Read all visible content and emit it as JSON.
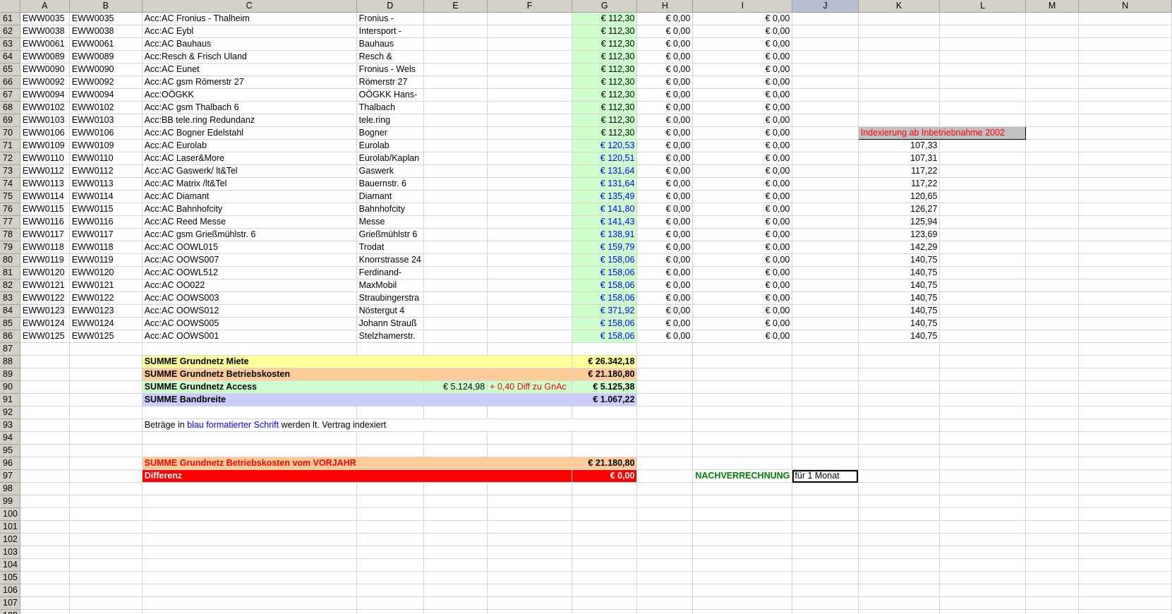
{
  "columns": [
    "A",
    "B",
    "C",
    "D",
    "E",
    "F",
    "G",
    "H",
    "I",
    "J",
    "K",
    "L",
    "M",
    "N"
  ],
  "selected_column": "J",
  "rows": [
    {
      "n": "61",
      "a": "EWW0035",
      "b": "EWW0035",
      "c": "Acc:AC Fronius - Thalheim",
      "d": "Fronius -",
      "g": "€ 112,30",
      "h": "€ 0,00",
      "i": "€ 0,00",
      "k": ""
    },
    {
      "n": "62",
      "a": "EWW0038",
      "b": "EWW0038",
      "c": "Acc:AC Eybl",
      "d": "Intersport -",
      "g": "€ 112,30",
      "h": "€ 0,00",
      "i": "€ 0,00",
      "k": ""
    },
    {
      "n": "63",
      "a": "EWW0061",
      "b": "EWW0061",
      "c": "Acc:AC Bauhaus",
      "d": "Bauhaus",
      "g": "€ 112,30",
      "h": "€ 0,00",
      "i": "€ 0,00",
      "k": ""
    },
    {
      "n": "64",
      "a": "EWW0089",
      "b": "EWW0089",
      "c": "Acc:Resch & Frisch Uland",
      "d": "Resch &",
      "g": "€ 112,30",
      "h": "€ 0,00",
      "i": "€ 0,00",
      "k": ""
    },
    {
      "n": "65",
      "a": "EWW0090",
      "b": "EWW0090",
      "c": "Acc:AC Eunet",
      "d": "Fronius - Wels",
      "g": "€ 112,30",
      "h": "€ 0,00",
      "i": "€ 0,00",
      "k": ""
    },
    {
      "n": "66",
      "a": "EWW0092",
      "b": "EWW0092",
      "c": "Acc:AC gsm Römerstr 27",
      "d": "Römerstr 27",
      "g": "€ 112,30",
      "h": "€ 0,00",
      "i": "€ 0,00",
      "k": ""
    },
    {
      "n": "67",
      "a": "EWW0094",
      "b": "EWW0094",
      "c": "Acc:OÖGKK",
      "d": "OÖGKK Hans-",
      "g": "€ 112,30",
      "h": "€ 0,00",
      "i": "€ 0,00",
      "k": ""
    },
    {
      "n": "68",
      "a": "EWW0102",
      "b": "EWW0102",
      "c": "Acc:AC gsm Thalbach 6",
      "d": "Thalbach",
      "g": "€ 112,30",
      "h": "€ 0,00",
      "i": "€ 0,00",
      "k": ""
    },
    {
      "n": "69",
      "a": "EWW0103",
      "b": "EWW0103",
      "c": "Acc:BB tele.ring Redundanz",
      "d": "tele.ring",
      "g": "€ 112,30",
      "h": "€ 0,00",
      "i": "€ 0,00",
      "k": ""
    },
    {
      "n": "70",
      "a": "EWW0106",
      "b": "EWW0106",
      "c": "Acc:AC Bogner Edelstahl",
      "d": "Bogner",
      "g": "€ 112,30",
      "h": "€ 0,00",
      "i": "€ 0,00",
      "k": "Indexierung ab Inbetriebnahme 2002"
    },
    {
      "n": "71",
      "a": "EWW0109",
      "b": "EWW0109",
      "c": "Acc:AC Eurolab",
      "d": "Eurolab",
      "g": "€ 120,53",
      "h": "€ 0,00",
      "i": "€ 0,00",
      "k": "107,33",
      "blue": true
    },
    {
      "n": "72",
      "a": "EWW0110",
      "b": "EWW0110",
      "c": "Acc:AC Laser&More",
      "d": "Eurolab/Kaplan",
      "g": "€ 120,51",
      "h": "€ 0,00",
      "i": "€ 0,00",
      "k": "107,31",
      "blue": true
    },
    {
      "n": "73",
      "a": "EWW0112",
      "b": "EWW0112",
      "c": "Acc:AC Gaswerk/ lt&Tel",
      "d": "Gaswerk",
      "g": "€ 131,64",
      "h": "€ 0,00",
      "i": "€ 0,00",
      "k": "117,22",
      "blue": true
    },
    {
      "n": "74",
      "a": "EWW0113",
      "b": "EWW0113",
      "c": "Acc:AC Matrix /lt&Tel",
      "d": "Bauernstr. 6",
      "g": "€ 131,64",
      "h": "€ 0,00",
      "i": "€ 0,00",
      "k": "117,22",
      "blue": true
    },
    {
      "n": "75",
      "a": "EWW0114",
      "b": "EWW0114",
      "c": "Acc:AC Diamant",
      "d": "Diamant",
      "g": "€ 135,49",
      "h": "€ 0,00",
      "i": "€ 0,00",
      "k": "120,65",
      "blue": true
    },
    {
      "n": "76",
      "a": "EWW0115",
      "b": "EWW0115",
      "c": "Acc:AC Bahnhofcity",
      "d": "Bahnhofcity",
      "g": "€ 141,80",
      "h": "€ 0,00",
      "i": "€ 0,00",
      "k": "126,27",
      "blue": true
    },
    {
      "n": "77",
      "a": "EWW0116",
      "b": "EWW0116",
      "c": "Acc:AC Reed Messe",
      "d": "Messe",
      "g": "€ 141,43",
      "h": "€ 0,00",
      "i": "€ 0,00",
      "k": "125,94",
      "blue": true
    },
    {
      "n": "78",
      "a": "EWW0117",
      "b": "EWW0117",
      "c": "Acc:AC gsm Grießmühlstr. 6",
      "d": "Grießmühlstr 6",
      "g": "€ 138,91",
      "h": "€ 0,00",
      "i": "€ 0,00",
      "k": "123,69",
      "blue": true
    },
    {
      "n": "79",
      "a": "EWW0118",
      "b": "EWW0118",
      "c": "Acc:AC OOWL015",
      "d": "Trodat",
      "g": "€ 159,79",
      "h": "€ 0,00",
      "i": "€ 0,00",
      "k": "142,29",
      "blue": true
    },
    {
      "n": "80",
      "a": "EWW0119",
      "b": "EWW0119",
      "c": "Acc:AC OOWS007",
      "d": "Knorrstrasse 24",
      "g": "€ 158,06",
      "h": "€ 0,00",
      "i": "€ 0,00",
      "k": "140,75",
      "blue": true
    },
    {
      "n": "81",
      "a": "EWW0120",
      "b": "EWW0120",
      "c": "Acc:AC OOWL512",
      "d": "Ferdinand-",
      "g": "€ 158,06",
      "h": "€ 0,00",
      "i": "€ 0,00",
      "k": "140,75",
      "blue": true
    },
    {
      "n": "82",
      "a": "EWW0121",
      "b": "EWW0121",
      "c": "Acc:AC OO022",
      "d": "MaxMobil",
      "g": "€ 158,06",
      "h": "€ 0,00",
      "i": "€ 0,00",
      "k": "140,75",
      "blue": true
    },
    {
      "n": "83",
      "a": "EWW0122",
      "b": "EWW0122",
      "c": "Acc:AC OOWS003",
      "d": "Straubingerstra",
      "g": "€ 158,06",
      "h": "€ 0,00",
      "i": "€ 0,00",
      "k": "140,75",
      "blue": true
    },
    {
      "n": "84",
      "a": "EWW0123",
      "b": "EWW0123",
      "c": "Acc:AC OOWS012",
      "d": "Nöstergut 4",
      "g": "€ 371,92",
      "h": "€ 0,00",
      "i": "€ 0,00",
      "k": "140,75",
      "blue": true
    },
    {
      "n": "85",
      "a": "EWW0124",
      "b": "EWW0124",
      "c": "Acc:AC OOWS005",
      "d": "Johann Strauß",
      "g": "€ 158,06",
      "h": "€ 0,00",
      "i": "€ 0,00",
      "k": "140,75",
      "blue": true
    },
    {
      "n": "86",
      "a": "EWW0125",
      "b": "EWW0125",
      "c": "Acc:AC OOWS001",
      "d": "Stelzhamerstr.",
      "g": "€ 158,06",
      "h": "€ 0,00",
      "i": "€ 0,00",
      "k": "140,75",
      "blue": true
    }
  ],
  "summary": {
    "miete_label": "SUMME Grundnetz Miete",
    "miete_value": "€ 26.342,18",
    "betrieb_label": "SUMME Grundnetz Betriebskosten",
    "betrieb_value": "€ 21.180,80",
    "access_label": "SUMME Grundnetz Access",
    "access_sub": "€ 5.124,98",
    "access_diff": "+ 0,40 Diff zu GnAc",
    "access_value": "€ 5.125,38",
    "band_label": "SUMME Bandbreite",
    "band_value": "€ 1.067,22",
    "note_1": "Beträge in ",
    "note_2": "blau formatierter Schrift",
    "note_3": " werden lt. Vertrag indexiert",
    "vorjahr_label": "SUMME Grundnetz Betriebskosten vom VORJAHR",
    "vorjahr_value": "€ 21.180,80",
    "diff_label": "Differenz",
    "diff_value": "€ 0,00",
    "nach_label": "NACHVERRECHNUNG",
    "nach_value": "für 1 Monat"
  },
  "colors": {
    "header_bg": "#d4d0c8",
    "highlight_green": "#ccffcc",
    "blue_text": "#0000ff"
  }
}
